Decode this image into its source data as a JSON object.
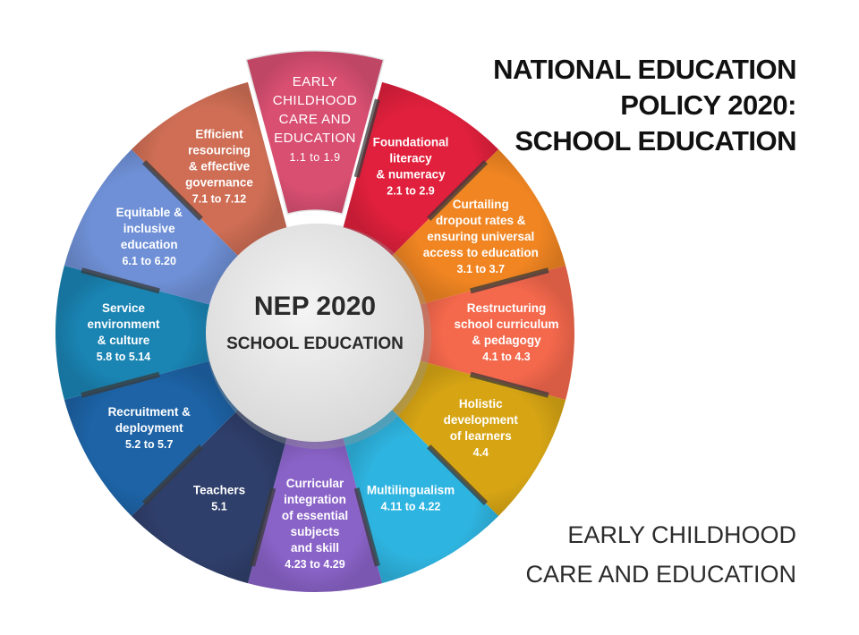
{
  "title": {
    "lines": [
      "NATIONAL EDUCATION",
      "POLICY 2020:",
      "SCHOOL EDUCATION"
    ]
  },
  "subtitle": {
    "lines": [
      "EARLY CHILDHOOD",
      "CARE AND EDUCATION"
    ]
  },
  "center": {
    "title": "NEP 2020",
    "subtitle": "SCHOOL EDUCATION"
  },
  "segments": [
    {
      "name": "early-childhood-care",
      "lines": [
        "EARLY",
        "CHILDHOOD",
        "CARE AND",
        "EDUCATION"
      ],
      "range": "1.1 to 1.9",
      "color": "#d94f72",
      "highlighted": true
    },
    {
      "name": "foundational-literacy",
      "lines": [
        "Foundational",
        "literacy",
        "& numeracy"
      ],
      "range": "2.1 to 2.9",
      "color": "#e0203c"
    },
    {
      "name": "curtailing-dropout",
      "lines": [
        "Curtailing",
        "dropout rates &",
        "ensuring universal",
        "access to education"
      ],
      "range": "3.1 to 3.7",
      "color": "#f08522"
    },
    {
      "name": "restructuring-curriculum",
      "lines": [
        "Restructuring",
        "school curriculum",
        "& pedagogy"
      ],
      "range": "4.1 to 4.3",
      "color": "#f4684c"
    },
    {
      "name": "holistic-development",
      "lines": [
        "Holistic",
        "development",
        "of learners"
      ],
      "range": "4.4",
      "color": "#d7a514"
    },
    {
      "name": "multilingualism",
      "lines": [
        "Multilingualism"
      ],
      "range": "4.11 to 4.22",
      "color": "#2eb4e0"
    },
    {
      "name": "curricular-integration",
      "lines": [
        "Curricular",
        "integration",
        "of essential",
        "subjects",
        "and skill"
      ],
      "range": "4.23 to 4.29",
      "color": "#8a63c8"
    },
    {
      "name": "teachers",
      "lines": [
        "Teachers"
      ],
      "range": "5.1",
      "color": "#2f3f6b"
    },
    {
      "name": "recruitment-deployment",
      "lines": [
        "Recruitment &",
        "deployment"
      ],
      "range": "5.2 to 5.7",
      "color": "#1d63a6"
    },
    {
      "name": "service-environment",
      "lines": [
        "Service",
        "environment",
        "& culture"
      ],
      "range": "5.8 to 5.14",
      "color": "#1a84b3"
    },
    {
      "name": "equitable-inclusive",
      "lines": [
        "Equitable &",
        "inclusive",
        "education"
      ],
      "range": "6.1 to 6.20",
      "color": "#6f90d6"
    },
    {
      "name": "efficient-resourcing",
      "lines": [
        "Efficient",
        "resourcing",
        "& effective",
        "governance"
      ],
      "range": "7.1 to 7.12",
      "color": "#cf6e55"
    }
  ]
}
